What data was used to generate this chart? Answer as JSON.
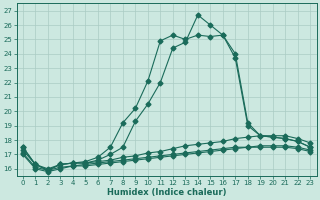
{
  "title": "",
  "xlabel": "Humidex (Indice chaleur)",
  "ylabel": "",
  "xlim": [
    -0.5,
    23.5
  ],
  "ylim": [
    15.5,
    27.5
  ],
  "xticks": [
    0,
    1,
    2,
    3,
    4,
    5,
    6,
    7,
    8,
    9,
    10,
    11,
    12,
    13,
    14,
    15,
    16,
    17,
    18,
    19,
    20,
    21,
    22,
    23
  ],
  "yticks": [
    16,
    17,
    18,
    19,
    20,
    21,
    22,
    23,
    24,
    25,
    26,
    27
  ],
  "bg_color": "#cce8e0",
  "grid_color": "#aaccc4",
  "line_color": "#1a6b5a",
  "line1_x": [
    0,
    1,
    2,
    3,
    4,
    5,
    6,
    7,
    8,
    9,
    10,
    11,
    12,
    13,
    14,
    15,
    16,
    17,
    18,
    19,
    20,
    21,
    22,
    23
  ],
  "line1_y": [
    17.5,
    16.3,
    15.9,
    16.3,
    16.4,
    16.4,
    16.6,
    17.0,
    17.5,
    19.3,
    20.5,
    22.0,
    24.4,
    24.8,
    26.7,
    26.0,
    25.3,
    23.7,
    19.0,
    18.3,
    18.2,
    18.1,
    17.9,
    17.5
  ],
  "line2_x": [
    0,
    1,
    2,
    3,
    4,
    5,
    6,
    7,
    8,
    9,
    10,
    11,
    12,
    13,
    14,
    15,
    16,
    17,
    18,
    19,
    20,
    21,
    22,
    23
  ],
  "line2_y": [
    17.5,
    16.3,
    15.9,
    16.3,
    16.4,
    16.5,
    16.8,
    17.5,
    19.2,
    20.2,
    22.1,
    24.9,
    25.3,
    25.0,
    25.3,
    25.2,
    25.3,
    24.0,
    19.2,
    18.3,
    18.2,
    18.1,
    17.9,
    17.5
  ],
  "line3_x": [
    0,
    1,
    2,
    3,
    4,
    5,
    6,
    7,
    8,
    9,
    10,
    11,
    12,
    13,
    14,
    15,
    16,
    17,
    18,
    19,
    20,
    21,
    22,
    23
  ],
  "line3_y": [
    17.3,
    16.3,
    16.0,
    16.3,
    16.4,
    16.4,
    16.5,
    16.6,
    16.8,
    16.9,
    17.1,
    17.2,
    17.4,
    17.6,
    17.7,
    17.8,
    17.9,
    18.1,
    18.2,
    18.3,
    18.3,
    18.3,
    18.1,
    17.8
  ],
  "line4_x": [
    0,
    1,
    2,
    3,
    4,
    5,
    6,
    7,
    8,
    9,
    10,
    11,
    12,
    13,
    14,
    15,
    16,
    17,
    18,
    19,
    20,
    21,
    22,
    23
  ],
  "line4_y": [
    17.1,
    16.1,
    15.9,
    16.1,
    16.2,
    16.3,
    16.4,
    16.5,
    16.6,
    16.7,
    16.8,
    16.9,
    17.0,
    17.1,
    17.2,
    17.3,
    17.4,
    17.5,
    17.5,
    17.6,
    17.6,
    17.6,
    17.5,
    17.3
  ],
  "line5_x": [
    0,
    1,
    2,
    3,
    4,
    5,
    6,
    7,
    8,
    9,
    10,
    11,
    12,
    13,
    14,
    15,
    16,
    17,
    18,
    19,
    20,
    21,
    22,
    23
  ],
  "line5_y": [
    17.0,
    16.0,
    15.8,
    16.0,
    16.2,
    16.2,
    16.3,
    16.4,
    16.5,
    16.6,
    16.7,
    16.8,
    16.9,
    17.0,
    17.1,
    17.2,
    17.3,
    17.4,
    17.5,
    17.5,
    17.5,
    17.5,
    17.4,
    17.2
  ],
  "marker_size": 2.5,
  "tick_fontsize": 5.0,
  "label_fontsize": 6.0,
  "lw": 0.8
}
